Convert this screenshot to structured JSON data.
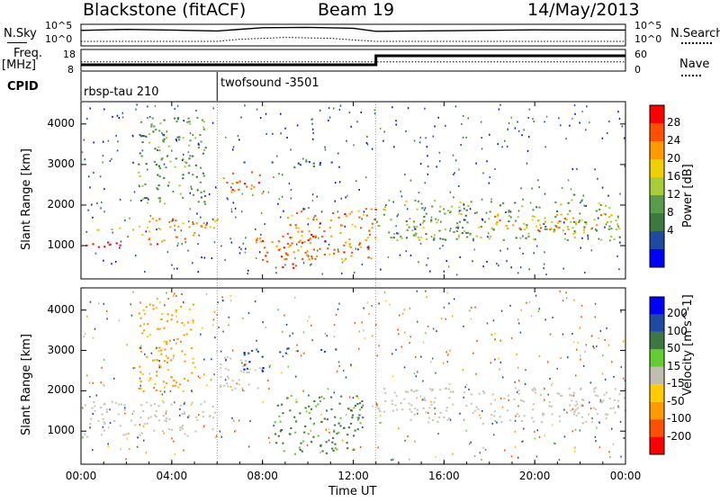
{
  "header": {
    "station": "Blackstone (fitACF)",
    "beam": "Beam 19",
    "date": "14/May/2013"
  },
  "summary_panel": {
    "nsky_label": "N.Sky",
    "nsearch_label": "N.Search",
    "freq_label_line1": "Freq.",
    "freq_label_line2": "[MHz]",
    "nave_label": "Nave",
    "cpid_label": "CPID",
    "cpid_segments": [
      {
        "name": "rbsp-tau 210",
        "start_hour": 0,
        "end_hour": 6
      },
      {
        "name": "twofsound -3501",
        "start_hour": 6,
        "end_hour": 24
      }
    ],
    "noise_ticks": [
      "10^5",
      "10^0"
    ],
    "freq_ticks": [
      "18",
      "8"
    ],
    "nave_ticks": [
      "60",
      "0"
    ]
  },
  "x_axis": {
    "label": "Time UT",
    "range_hours": [
      0,
      24
    ],
    "ticks": [
      "00:00",
      "04:00",
      "08:00",
      "12:00",
      "16:00",
      "20:00",
      "00:00"
    ]
  },
  "colors": {
    "power": [
      "#0000ff",
      "#1e4aa0",
      "#3c7840",
      "#5a9c4a",
      "#a8cc3a",
      "#f0d000",
      "#ff9a00",
      "#ff5000",
      "#ff0000"
    ],
    "velocity": [
      "#0000ff",
      "#1e4aa0",
      "#3c7840",
      "#66cc33",
      "#bfbfb0",
      "#ffcc00",
      "#ff9a00",
      "#ff5000",
      "#ff0000"
    ],
    "ground_scatter": "#c8c8b8"
  },
  "chart_data": [
    {
      "type": "line",
      "title": "",
      "ylabel": "N.Sky / N.Search",
      "y_scale": "log",
      "ylim": [
        1,
        100000
      ],
      "series": [
        {
          "name": "N.Sky",
          "x": [
            0,
            2,
            4,
            6,
            8,
            10,
            12,
            13,
            16,
            20,
            24
          ],
          "y": [
            4000,
            8000,
            5000,
            2500,
            30000,
            40000,
            20000,
            2000,
            3000,
            6000,
            5000
          ]
        },
        {
          "name": "N.Search",
          "x": [
            0,
            6,
            7,
            9,
            11,
            12,
            13,
            24
          ],
          "y": [
            1,
            1,
            5,
            20,
            10,
            3,
            1,
            1
          ]
        }
      ]
    },
    {
      "type": "line",
      "title": "",
      "ylabel": "Freq. [MHz] / Nave",
      "series": [
        {
          "name": "Freq.",
          "x": [
            0,
            13,
            13,
            24
          ],
          "y": [
            10,
            10,
            15,
            15
          ]
        },
        {
          "name": "Nave",
          "x": [
            0,
            24
          ],
          "y": [
            22,
            22
          ]
        }
      ]
    },
    {
      "type": "heatmap",
      "title": "",
      "xlabel": "Time UT",
      "ylabel": "Slant Range [km]",
      "x_range_hours": [
        0,
        24
      ],
      "ylim": [
        180,
        4550
      ],
      "y_ticks": [
        1000,
        2000,
        3000,
        4000
      ],
      "colorbar": {
        "label": "Power [dB]",
        "ticks": [
          4,
          8,
          12,
          16,
          20,
          24,
          28
        ]
      },
      "regions": [
        {
          "t_start": 0.0,
          "t_end": 3.5,
          "range_low": 950,
          "range_high": 1100,
          "value": 30
        },
        {
          "t_start": 2.5,
          "t_end": 6.0,
          "range_low": 1100,
          "range_high": 1700,
          "value": 22
        },
        {
          "t_start": 0.0,
          "t_end": 4.5,
          "range_low": 1400,
          "range_high": 1500,
          "value": 20
        },
        {
          "t_start": 6.0,
          "t_end": 8.0,
          "range_low": 2300,
          "range_high": 2850,
          "value": 26
        },
        {
          "t_start": 7.5,
          "t_end": 10.5,
          "range_low": 450,
          "range_high": 1250,
          "value": 26
        },
        {
          "t_start": 9.0,
          "t_end": 13.0,
          "range_low": 650,
          "range_high": 1950,
          "value": 24
        },
        {
          "t_start": 13.0,
          "t_end": 24.0,
          "range_low": 1150,
          "range_high": 2150,
          "value": 14
        },
        {
          "t_start": 18.0,
          "t_end": 24.0,
          "range_low": 1350,
          "range_high": 1800,
          "value": 22
        },
        {
          "t_start": 2.5,
          "t_end": 5.5,
          "range_low": 2000,
          "range_high": 4200,
          "value": 12
        },
        {
          "t_start": 7.0,
          "t_end": 11.5,
          "range_low": 2950,
          "range_high": 3100,
          "value": 6
        }
      ]
    },
    {
      "type": "heatmap",
      "title": "",
      "xlabel": "Time UT",
      "ylabel": "Slant Range [km]",
      "x_range_hours": [
        0,
        24
      ],
      "ylim": [
        180,
        4550
      ],
      "y_ticks": [
        1000,
        2000,
        3000,
        4000
      ],
      "colorbar": {
        "label": "Velocity [m s^-1]",
        "ticks": [
          200,
          100,
          50,
          15,
          -15,
          -50,
          -100,
          -200
        ]
      },
      "regions": [
        {
          "t_start": 0.0,
          "t_end": 6.0,
          "range_low": 850,
          "range_high": 1750,
          "value": 0
        },
        {
          "t_start": 6.0,
          "t_end": 8.0,
          "range_low": 2000,
          "range_high": 2900,
          "value": 0
        },
        {
          "t_start": 7.0,
          "t_end": 8.0,
          "range_low": 2500,
          "range_high": 3000,
          "value": 200
        },
        {
          "t_start": 8.5,
          "t_end": 12.5,
          "range_low": 450,
          "range_high": 1900,
          "value": 60
        },
        {
          "t_start": 13.0,
          "t_end": 24.0,
          "range_low": 1200,
          "range_high": 2100,
          "value": 0
        },
        {
          "t_start": 2.5,
          "t_end": 5.0,
          "range_low": 2000,
          "range_high": 4200,
          "value": -60
        },
        {
          "t_start": 7.0,
          "t_end": 11.5,
          "range_low": 2950,
          "range_high": 3100,
          "value": 150
        }
      ]
    }
  ]
}
